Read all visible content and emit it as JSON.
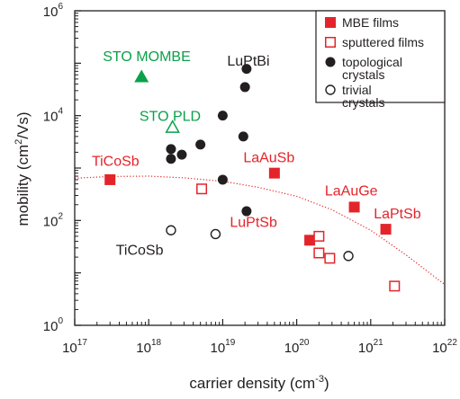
{
  "chart_data": {
    "type": "scatter",
    "x_scale": "log",
    "y_scale": "log",
    "xlabel": {
      "text": "carrier density (cm",
      "sup": "-3",
      "tail": ")"
    },
    "ylabel": {
      "text": "mobility (cm",
      "sup": "2",
      "tail": "/Vs)"
    },
    "xlim": [
      1e+17,
      1e+22
    ],
    "ylim": [
      1,
      1000000.0
    ],
    "x_ticks": [
      {
        "base": "10",
        "exp": "17"
      },
      {
        "base": "10",
        "exp": "18"
      },
      {
        "base": "10",
        "exp": "19"
      },
      {
        "base": "10",
        "exp": "20"
      },
      {
        "base": "10",
        "exp": "21"
      },
      {
        "base": "10",
        "exp": "22"
      }
    ],
    "y_ticks": [
      {
        "value": 1,
        "base": "10",
        "exp": "0"
      },
      {
        "value": 100,
        "base": "10",
        "exp": "2"
      },
      {
        "value": 10000,
        "base": "10",
        "exp": "4"
      },
      {
        "value": 1000000,
        "base": "10",
        "exp": "6"
      }
    ],
    "grid": false,
    "legend_position": "top-right",
    "colors": {
      "red": "#e3242b",
      "green": "#0aa14a",
      "black": "#231f20"
    },
    "series": [
      {
        "name": "MBE films",
        "marker": "square-filled",
        "color": "#e3242b",
        "points": [
          {
            "x": 3e+17,
            "y": 600
          },
          {
            "x": 5e+19,
            "y": 800
          },
          {
            "x": 1.5e+20,
            "y": 42
          },
          {
            "x": 6e+20,
            "y": 180
          },
          {
            "x": 1.6e+21,
            "y": 68
          }
        ]
      },
      {
        "name": "sputtered films",
        "marker": "square-open",
        "color": "#e3242b",
        "points": [
          {
            "x": 5.2e+18,
            "y": 400
          },
          {
            "x": 2e+20,
            "y": 50
          },
          {
            "x": 2e+20,
            "y": 24
          },
          {
            "x": 2.8e+20,
            "y": 19
          },
          {
            "x": 2.1e+21,
            "y": 5.6
          }
        ]
      },
      {
        "name": "topological crystals",
        "marker": "circle-filled",
        "color": "#231f20",
        "points": [
          {
            "x": 2.1e+19,
            "y": 78000
          },
          {
            "x": 2e+19,
            "y": 35000
          },
          {
            "x": 1e+19,
            "y": 10000
          },
          {
            "x": 1.9e+19,
            "y": 4000
          },
          {
            "x": 5e+18,
            "y": 2800
          },
          {
            "x": 2e+18,
            "y": 2300
          },
          {
            "x": 2e+18,
            "y": 1500
          },
          {
            "x": 2.8e+18,
            "y": 1800
          },
          {
            "x": 1e+19,
            "y": 600
          },
          {
            "x": 2.1e+19,
            "y": 150
          }
        ]
      },
      {
        "name": "trivial crystals",
        "marker": "circle-open",
        "color": "#231f20",
        "points": [
          {
            "x": 2e+18,
            "y": 65
          },
          {
            "x": 8e+18,
            "y": 55
          },
          {
            "x": 5e+20,
            "y": 21
          }
        ]
      },
      {
        "marker": "triangle-filled",
        "color": "#0aa14a",
        "points": [
          {
            "x": 8e+17,
            "y": 55000
          }
        ]
      },
      {
        "marker": "triangle-open",
        "color": "#0aa14a",
        "points": [
          {
            "x": 2.1e+18,
            "y": 6000
          }
        ]
      }
    ],
    "fit_curve": {
      "style": "dotted",
      "color": "#e3242b",
      "points": [
        {
          "x": 1e+17,
          "y": 640
        },
        {
          "x": 3e+17,
          "y": 690
        },
        {
          "x": 1e+18,
          "y": 700
        },
        {
          "x": 3e+18,
          "y": 650
        },
        {
          "x": 1e+19,
          "y": 560
        },
        {
          "x": 3e+19,
          "y": 430
        },
        {
          "x": 1e+20,
          "y": 290
        },
        {
          "x": 3e+20,
          "y": 160
        },
        {
          "x": 1e+21,
          "y": 65
        },
        {
          "x": 3e+21,
          "y": 22
        },
        {
          "x": 1e+22,
          "y": 6
        }
      ]
    },
    "annotations": [
      {
        "text": "STO MOMBE",
        "color": "#0aa14a",
        "x": 2.4e+17,
        "y": 110000
      },
      {
        "text": "STO PLD",
        "color": "#0aa14a",
        "x": 7.5e+17,
        "y": 8000
      },
      {
        "text": "LuPtBi",
        "color": "#231f20",
        "x": 1.15e+19,
        "y": 90000
      },
      {
        "text": "TiCoSb",
        "color": "#e3242b",
        "x": 1.7e+17,
        "y": 1100
      },
      {
        "text": "LaAuSb",
        "color": "#e3242b",
        "x": 1.9e+19,
        "y": 1300
      },
      {
        "text": "LaAuGe",
        "color": "#e3242b",
        "x": 2.4e+20,
        "y": 300
      },
      {
        "text": "LuPtSb",
        "color": "#e3242b",
        "x": 1.25e+19,
        "y": 75
      },
      {
        "text": "LaPtSb",
        "color": "#e3242b",
        "x": 1.1e+21,
        "y": 110
      },
      {
        "text": "TiCoSb",
        "color": "#231f20",
        "x": 3.6e+17,
        "y": 22
      }
    ]
  }
}
